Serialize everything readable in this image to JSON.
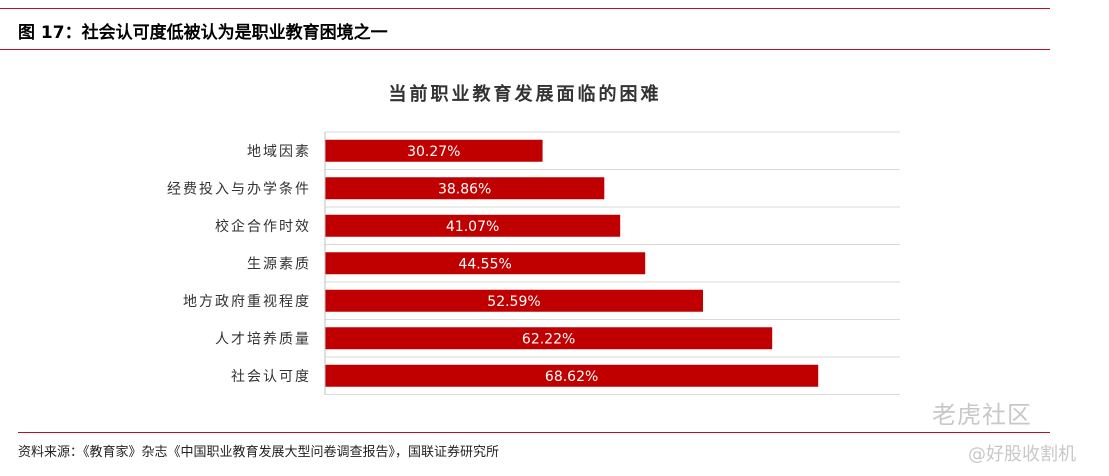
{
  "header": {
    "figure_title": "图 17：社会认可度低被认为是职业教育困境之一"
  },
  "chart_data": {
    "type": "bar",
    "orientation": "horizontal",
    "title": "当前职业教育发展面临的困难",
    "categories": [
      "地域因素",
      "经费投入与办学条件",
      "校企合作时效",
      "生源素质",
      "地方政府重视程度",
      "人才培养质量",
      "社会认可度"
    ],
    "values": [
      30.27,
      38.86,
      41.07,
      44.55,
      52.59,
      62.22,
      68.62
    ],
    "value_labels": [
      "30.27%",
      "38.86%",
      "41.07%",
      "44.55%",
      "52.59%",
      "62.22%",
      "68.62%"
    ],
    "xlim": [
      0,
      80
    ],
    "bar_color": "#c00000",
    "label_color": "#ffffff",
    "grid": true,
    "legend": "none"
  },
  "footer": {
    "source": "资料来源：《教育家》杂志《中国职业教育发展大型问卷调查报告》，国联证券研究所"
  },
  "watermark": {
    "main": "老虎社区",
    "sub": "@好股收割机"
  }
}
